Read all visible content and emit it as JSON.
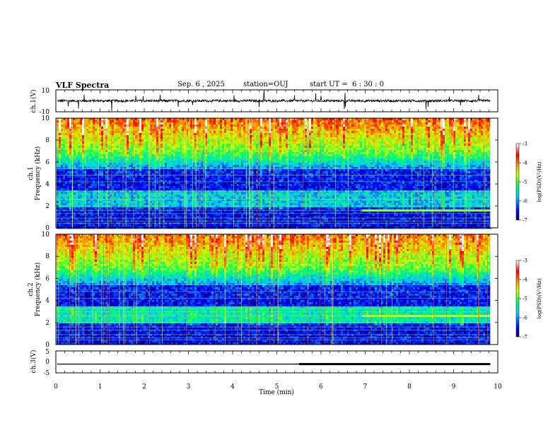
{
  "header": {
    "title": "VLF Spectra",
    "date": "Sep. 6 , 2025",
    "station": "station=OUJ",
    "start_ut": "start UT =  6 : 30 : 0"
  },
  "chart_data": [
    {
      "type": "line",
      "name": "ch1-waveform",
      "ylabel": "ch.1(V)",
      "ylim": [
        -10,
        10
      ],
      "yticks": [
        "10",
        "-10"
      ],
      "xlim": [
        0,
        10
      ],
      "baseline": 0
    },
    {
      "type": "heatmap",
      "name": "ch1-spectrogram",
      "ylabel": "ch.1\nFrequency (kHz)",
      "ylim": [
        0,
        10
      ],
      "yticks": [
        "0",
        "2",
        "4",
        "6",
        "8",
        "10"
      ],
      "xlim": [
        0,
        10
      ],
      "colorbar": {
        "label": "log(PSD)(V²/Hz)",
        "range": [
          -7,
          -3
        ],
        "ticks": [
          "-3",
          "-4",
          "-5",
          "-6",
          "-7"
        ]
      }
    },
    {
      "type": "heatmap",
      "name": "ch2-spectrogram",
      "ylabel": "ch.2\nFrequency (kHz)",
      "ylim": [
        0,
        10
      ],
      "yticks": [
        "0",
        "2",
        "4",
        "6",
        "8",
        "10"
      ],
      "xlim": [
        0,
        10
      ],
      "colorbar": {
        "label": "log(PSD)(V²/Hz)",
        "range": [
          -7,
          -3
        ],
        "ticks": [
          "-3",
          "-4",
          "-5",
          "-6",
          "-7"
        ]
      }
    },
    {
      "type": "line",
      "name": "ch3-signal",
      "ylabel": "ch.3(V)",
      "ylim": [
        -5,
        5
      ],
      "yticks": [
        "5",
        "0",
        "-5"
      ],
      "xlim": [
        0,
        10
      ],
      "baseline": -1
    }
  ],
  "xaxis": {
    "label": "Time (min)",
    "ticks": [
      "0",
      "1",
      "2",
      "3",
      "4",
      "5",
      "6",
      "7",
      "8",
      "9",
      "10"
    ],
    "data_end": 9.83
  }
}
